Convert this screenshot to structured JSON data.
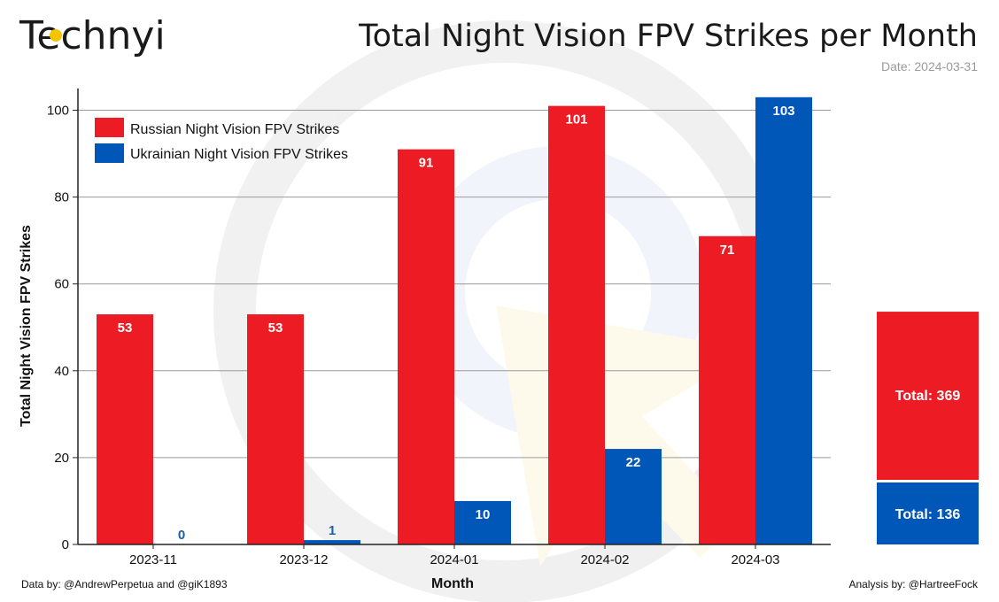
{
  "brand": {
    "logo_text": "Technyi"
  },
  "header": {
    "title": "Total Night Vision FPV Strikes per Month",
    "date_text": "Date: 2024-03-31"
  },
  "footer": {
    "data_credit": "Data by: @AndrewPerpetua and @giK1893",
    "analysis_credit": "Analysis by: @HartreeFock"
  },
  "colors": {
    "russian": "#ed1c24",
    "ukrainian": "#0057b7",
    "grid": "#9a9a9a",
    "axis": "#222222",
    "value_label_inside": "#ffffff",
    "value_label_outside": "#1f5fa8"
  },
  "chart_data": [
    {
      "type": "bar",
      "title": "Total Night Vision FPV Strikes per Month",
      "xlabel": "Month",
      "ylabel": "Total Night Vision FPV Strikes",
      "ylim": [
        0,
        105
      ],
      "yticks": [
        0,
        20,
        40,
        60,
        80,
        100
      ],
      "grid": true,
      "legend_position": "top-left",
      "categories": [
        "2023-11",
        "2023-12",
        "2024-01",
        "2024-02",
        "2024-03"
      ],
      "series": [
        {
          "name": "Russian Night Vision FPV Strikes",
          "values": [
            53,
            53,
            91,
            101,
            71
          ]
        },
        {
          "name": "Ukrainian Night Vision FPV Strikes",
          "values": [
            0,
            1,
            10,
            22,
            103
          ]
        }
      ]
    },
    {
      "type": "bar",
      "stacked": true,
      "title": "",
      "categories": [
        "Total"
      ],
      "series": [
        {
          "name": "Russian",
          "label": "Total: 369",
          "value": 369
        },
        {
          "name": "Ukrainian",
          "label": "Total: 136",
          "value": 136
        }
      ]
    }
  ]
}
